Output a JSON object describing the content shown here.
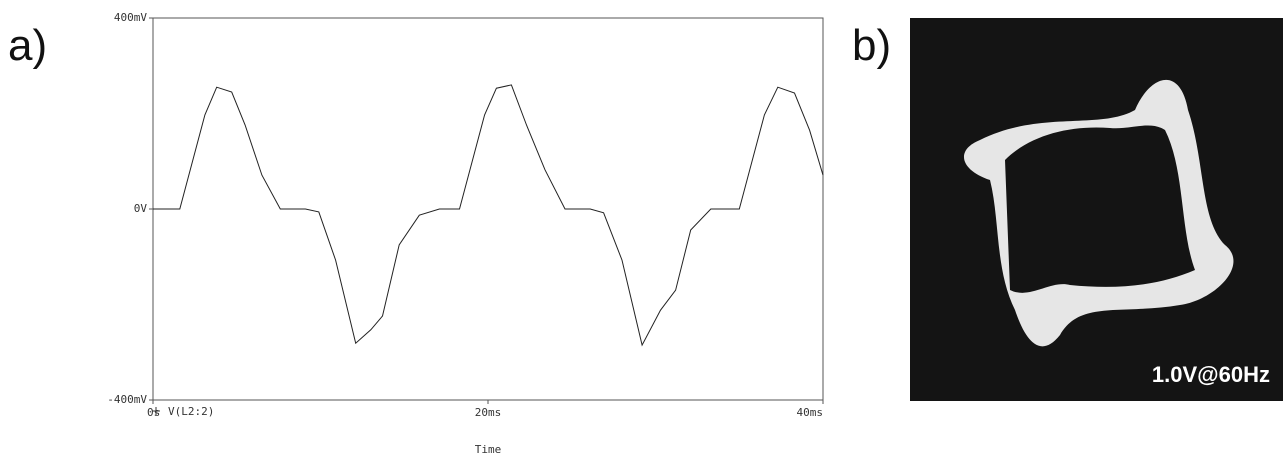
{
  "panel_labels": [
    "a)",
    "b)"
  ],
  "image": {
    "caption": "1.0V@60Hz"
  },
  "chart_data": {
    "type": "line",
    "x_label": "Time",
    "x": [
      0,
      1.6,
      3.1,
      3.8,
      4.7,
      5.5,
      6.5,
      7.6,
      9.1,
      9.9,
      10.9,
      12.1,
      13.0,
      13.7,
      14.7,
      15.9,
      17.1,
      18.3,
      19.8,
      20.5,
      21.4,
      22.3,
      23.4,
      24.6,
      26.1,
      26.9,
      28.0,
      29.2,
      30.3,
      31.2,
      32.1,
      33.3,
      35.0,
      36.5,
      37.3,
      38.3,
      39.2,
      40
    ],
    "series": [
      {
        "name": "V(L2:2)",
        "color": "#222222",
        "values": [
          0,
          0,
          197,
          255,
          245,
          176,
          71,
          0,
          0,
          -6,
          -107,
          -281,
          -253,
          -224,
          -75,
          -13,
          0,
          0,
          197,
          253,
          260,
          176,
          82,
          0,
          0,
          -8,
          -107,
          -285,
          -212,
          -170,
          -44,
          0,
          0,
          197,
          255,
          243,
          165,
          71
        ]
      }
    ],
    "xlim": [
      0,
      40
    ],
    "xticks": [
      {
        "value": 0,
        "label": "0s"
      },
      {
        "value": 20,
        "label": "20ms"
      },
      {
        "value": 40,
        "label": "40ms"
      }
    ],
    "ylim": [
      -400,
      400
    ],
    "yticks": [
      {
        "value": -400,
        "label": "-400mV"
      },
      {
        "value": 0,
        "label": "0V"
      },
      {
        "value": 400,
        "label": "400mV"
      }
    ]
  }
}
